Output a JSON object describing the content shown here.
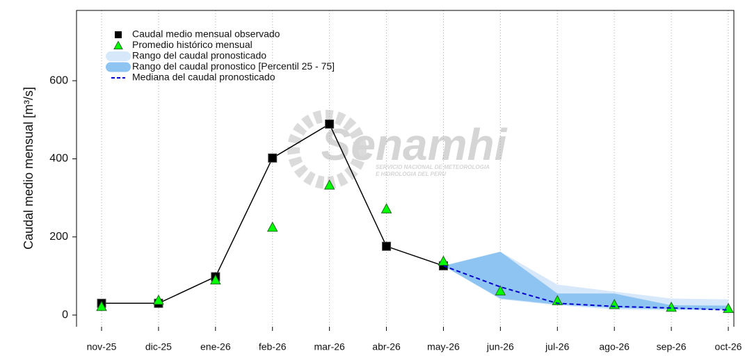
{
  "chart_data": {
    "type": "line",
    "ylabel": "Caudal medio mensual  [m³/s]",
    "categories": [
      "nov-25",
      "dic-25",
      "ene-26",
      "feb-26",
      "mar-26",
      "abr-26",
      "may-26",
      "jun-26",
      "jul-26",
      "ago-26",
      "sep-26",
      "oct-26"
    ],
    "ylim": [
      -30,
      780
    ],
    "yticks": [
      0,
      200,
      400,
      600
    ],
    "grid": true,
    "bands": [
      {
        "name": "Rango del caudal pronosticado",
        "color": "#d6e8fa",
        "low": [
          null,
          null,
          null,
          null,
          null,
          null,
          126,
          40,
          25,
          14,
          12,
          12
        ],
        "high": [
          null,
          null,
          null,
          null,
          null,
          null,
          126,
          162,
          78,
          60,
          42,
          40
        ]
      },
      {
        "name": "Rango del caudal pronostico [Percentil 25 - 75]",
        "color": "#8ec4f2",
        "low": [
          null,
          null,
          null,
          null,
          null,
          null,
          126,
          42,
          27,
          18,
          15,
          14
        ],
        "high": [
          null,
          null,
          null,
          null,
          null,
          null,
          126,
          162,
          55,
          55,
          25,
          24
        ]
      }
    ],
    "series": [
      {
        "name": "Caudal medio mensual observado",
        "color": "#000000",
        "marker": "square",
        "values": [
          30,
          30,
          98,
          402,
          489,
          176,
          126,
          null,
          null,
          null,
          null,
          null
        ]
      },
      {
        "name": "Promedio histórico mensual",
        "color": "#00ff00",
        "marker": "triangle",
        "values": [
          22,
          38,
          90,
          225,
          333,
          272,
          138,
          62,
          37,
          27,
          20,
          17
        ]
      },
      {
        "name": "Mediana del caudal pronosticado",
        "color": "#0000cc",
        "marker": "dash",
        "values": [
          null,
          null,
          null,
          null,
          null,
          null,
          126,
          72,
          30,
          22,
          18,
          13
        ]
      }
    ],
    "watermark": {
      "title": "Senamhi",
      "line1": "SERVICIO NACIONAL DE METEOROLOGIA",
      "line2": "E HIDROLOGIA DEL PERU"
    }
  }
}
